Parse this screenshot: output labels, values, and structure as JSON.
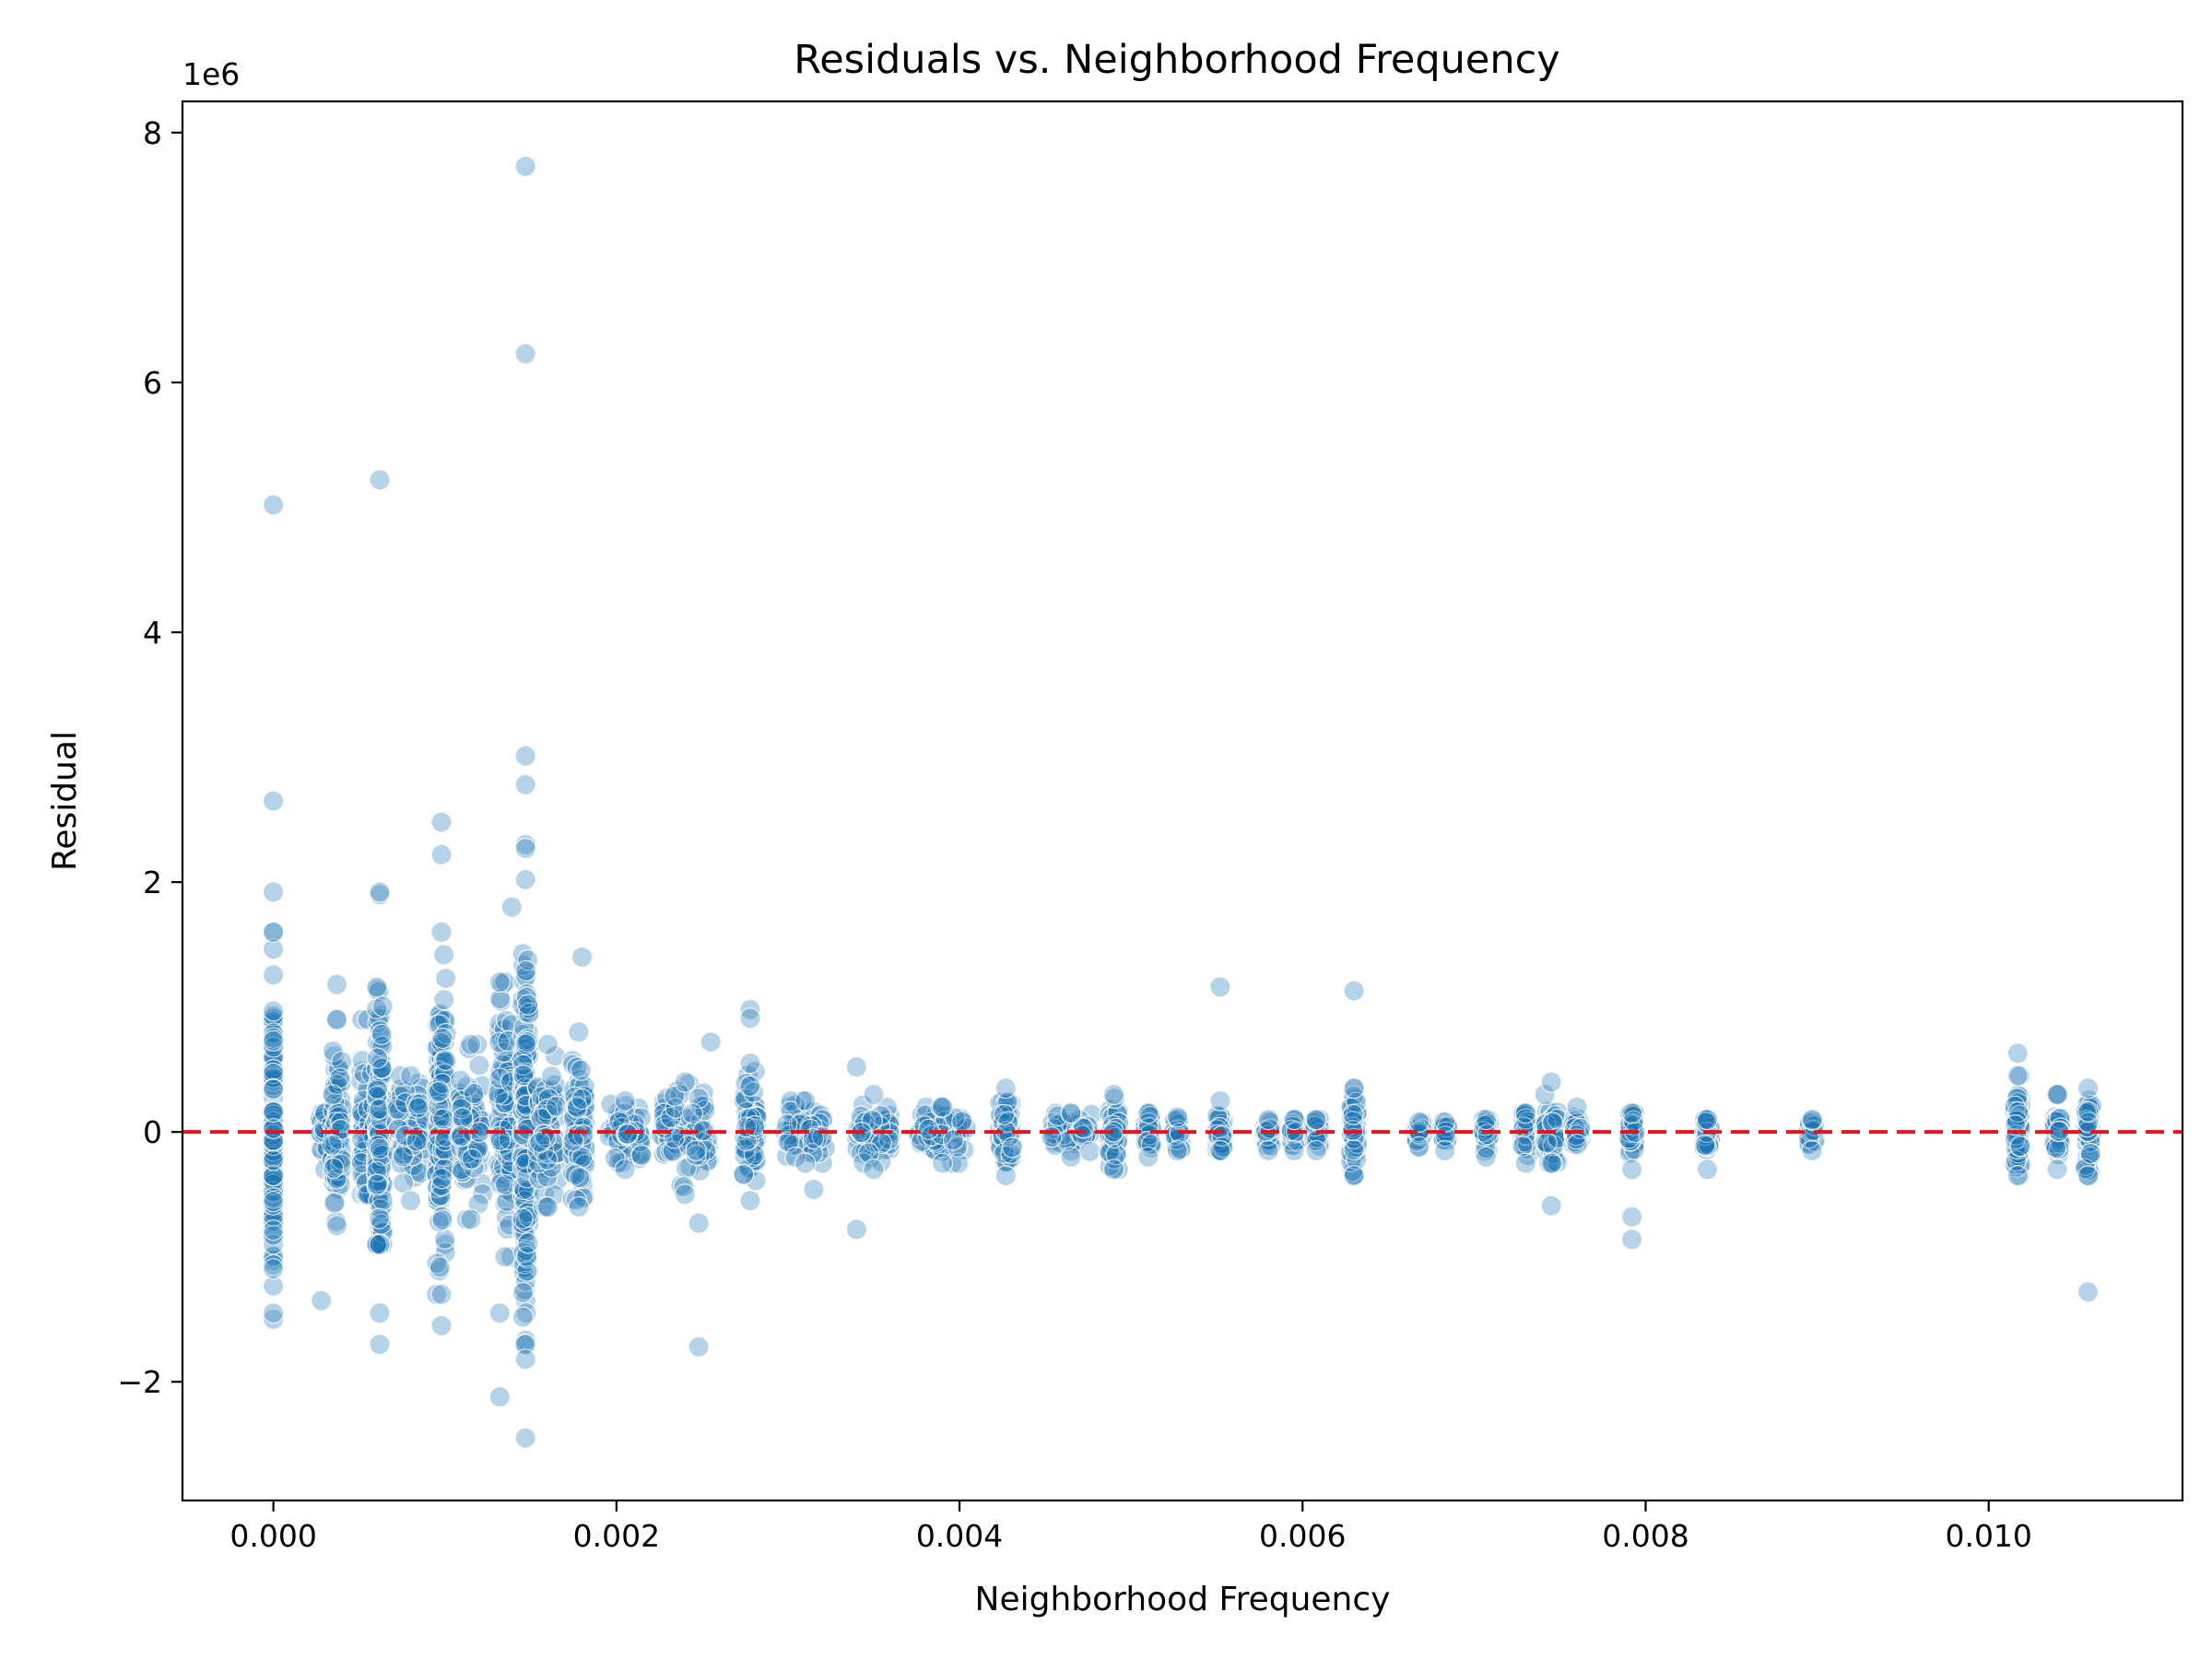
{
  "chart_data": {
    "type": "scatter",
    "title": "Residuals vs. Neighborhood Frequency",
    "xlabel": "Neighborhood Frequency",
    "ylabel": "Residual",
    "y_offset_label": "1e6",
    "xlim": [
      -0.00053,
      0.01113
    ],
    "ylim": [
      -2.95,
      8.25
    ],
    "xticks": [
      0.0,
      0.002,
      0.004,
      0.006,
      0.008,
      0.01
    ],
    "xtick_labels": [
      "0.000",
      "0.002",
      "0.004",
      "0.006",
      "0.008",
      "0.010"
    ],
    "yticks": [
      -2,
      0,
      2,
      4,
      6,
      8
    ],
    "ytick_labels": [
      "−2",
      "0",
      "2",
      "4",
      "6",
      "8"
    ],
    "grid": false,
    "reference_line": {
      "y": 0,
      "style": "dashed",
      "color": "#e8141c"
    },
    "point_color": "#1f77b4",
    "columns": [
      {
        "x": 0.0,
        "min": -1.5,
        "max": 1.6,
        "w": 0.0
      },
      {
        "x": 0.0003,
        "min": -0.3,
        "max": 0.15,
        "w": 3e-05
      },
      {
        "x": 0.00037,
        "min": -0.75,
        "max": 0.9,
        "w": 3e-05
      },
      {
        "x": 0.00055,
        "min": -0.5,
        "max": 0.9,
        "w": 4e-05
      },
      {
        "x": 0.00062,
        "min": -0.9,
        "max": 1.9,
        "w": 2e-05
      },
      {
        "x": 0.0008,
        "min": -0.55,
        "max": 0.45,
        "w": 9e-05
      },
      {
        "x": 0.00098,
        "min": -1.3,
        "max": 1.6,
        "w": 3e-05
      },
      {
        "x": 0.00115,
        "min": -0.7,
        "max": 0.7,
        "w": 7e-05
      },
      {
        "x": 0.00135,
        "min": -1.0,
        "max": 1.2,
        "w": 4e-05
      },
      {
        "x": 0.00147,
        "min": -1.7,
        "max": 2.3,
        "w": 2e-05
      },
      {
        "x": 0.0016,
        "min": -0.6,
        "max": 0.7,
        "w": 6e-05
      },
      {
        "x": 0.00178,
        "min": -0.6,
        "max": 0.8,
        "w": 4e-05
      },
      {
        "x": 0.00205,
        "min": -0.3,
        "max": 0.25,
        "w": 0.0001
      },
      {
        "x": 0.0024,
        "min": -0.5,
        "max": 0.4,
        "w": 0.00014
      },
      {
        "x": 0.00278,
        "min": -0.55,
        "max": 0.55,
        "w": 4e-05
      },
      {
        "x": 0.0031,
        "min": -0.25,
        "max": 0.25,
        "w": 0.00012
      },
      {
        "x": 0.0035,
        "min": -0.3,
        "max": 0.3,
        "w": 0.0001
      },
      {
        "x": 0.0039,
        "min": -0.25,
        "max": 0.2,
        "w": 0.00014
      },
      {
        "x": 0.00427,
        "min": -0.35,
        "max": 0.35,
        "w": 4e-05
      },
      {
        "x": 0.00465,
        "min": -0.2,
        "max": 0.15,
        "w": 0.00012
      },
      {
        "x": 0.0049,
        "min": -0.3,
        "max": 0.3,
        "w": 3e-05
      },
      {
        "x": 0.0051,
        "min": -0.2,
        "max": 0.15,
        "w": 2e-05
      },
      {
        "x": 0.00527,
        "min": -0.15,
        "max": 0.12,
        "w": 2e-05
      },
      {
        "x": 0.00552,
        "min": -0.15,
        "max": 0.25,
        "w": 2e-05
      },
      {
        "x": 0.0058,
        "min": -0.15,
        "max": 0.1,
        "w": 2e-05
      },
      {
        "x": 0.00595,
        "min": -0.15,
        "max": 0.1,
        "w": 2e-05
      },
      {
        "x": 0.00608,
        "min": -0.15,
        "max": 0.1,
        "w": 2e-05
      },
      {
        "x": 0.0063,
        "min": -0.35,
        "max": 0.35,
        "w": 2e-05
      },
      {
        "x": 0.00668,
        "min": -0.12,
        "max": 0.08,
        "w": 2e-05
      },
      {
        "x": 0.00683,
        "min": -0.15,
        "max": 0.08,
        "w": 2e-05
      },
      {
        "x": 0.00707,
        "min": -0.2,
        "max": 0.1,
        "w": 2e-05
      },
      {
        "x": 0.0073,
        "min": -0.25,
        "max": 0.15,
        "w": 2e-05
      },
      {
        "x": 0.00745,
        "min": -0.25,
        "max": 0.4,
        "w": 4e-05
      },
      {
        "x": 0.0076,
        "min": -0.1,
        "max": 0.2,
        "w": 2e-05
      },
      {
        "x": 0.00792,
        "min": -0.3,
        "max": 0.15,
        "w": 2e-05
      },
      {
        "x": 0.00836,
        "min": -0.3,
        "max": 0.1,
        "w": 2e-05
      },
      {
        "x": 0.00897,
        "min": -0.15,
        "max": 0.1,
        "w": 2e-05
      },
      {
        "x": 0.01017,
        "min": -0.35,
        "max": 0.45,
        "w": 2e-05
      },
      {
        "x": 0.0104,
        "min": -0.3,
        "max": 0.3,
        "w": 2e-05
      },
      {
        "x": 0.01058,
        "min": -0.35,
        "max": 0.35,
        "w": 2e-05
      }
    ],
    "outliers": [
      {
        "x": 0.0,
        "y": 5.02
      },
      {
        "x": 0.0,
        "y": 2.65
      },
      {
        "x": 0.0,
        "y": 1.92
      },
      {
        "x": 0.0,
        "y": -1.45
      },
      {
        "x": 0.00028,
        "y": -1.35
      },
      {
        "x": 0.00037,
        "y": 1.18
      },
      {
        "x": 0.00062,
        "y": 5.22
      },
      {
        "x": 0.00062,
        "y": 1.92
      },
      {
        "x": 0.00062,
        "y": -1.7
      },
      {
        "x": 0.00062,
        "y": -1.45
      },
      {
        "x": 0.00098,
        "y": 2.48
      },
      {
        "x": 0.00098,
        "y": 2.22
      },
      {
        "x": 0.00098,
        "y": -1.55
      },
      {
        "x": 0.00132,
        "y": -2.12
      },
      {
        "x": 0.00132,
        "y": -1.45
      },
      {
        "x": 0.00132,
        "y": 1.2
      },
      {
        "x": 0.00139,
        "y": 1.8
      },
      {
        "x": 0.00147,
        "y": 7.73
      },
      {
        "x": 0.00147,
        "y": 6.23
      },
      {
        "x": 0.00147,
        "y": 3.01
      },
      {
        "x": 0.00147,
        "y": 2.78
      },
      {
        "x": 0.00147,
        "y": 2.27
      },
      {
        "x": 0.00147,
        "y": 2.02
      },
      {
        "x": 0.00147,
        "y": -1.82
      },
      {
        "x": 0.00147,
        "y": -2.45
      },
      {
        "x": 0.0018,
        "y": 1.4
      },
      {
        "x": 0.00248,
        "y": -1.72
      },
      {
        "x": 0.00248,
        "y": -0.73
      },
      {
        "x": 0.00255,
        "y": 0.72
      },
      {
        "x": 0.00278,
        "y": 0.98
      },
      {
        "x": 0.00278,
        "y": 0.91
      },
      {
        "x": 0.0034,
        "y": -0.78
      },
      {
        "x": 0.0034,
        "y": 0.52
      },
      {
        "x": 0.00315,
        "y": -0.46
      },
      {
        "x": 0.00552,
        "y": 1.16
      },
      {
        "x": 0.0063,
        "y": 1.13
      },
      {
        "x": 0.00745,
        "y": -0.59
      },
      {
        "x": 0.00792,
        "y": -0.68
      },
      {
        "x": 0.00792,
        "y": -0.86
      },
      {
        "x": 0.01017,
        "y": 0.63
      },
      {
        "x": 0.01058,
        "y": -1.28
      }
    ]
  }
}
